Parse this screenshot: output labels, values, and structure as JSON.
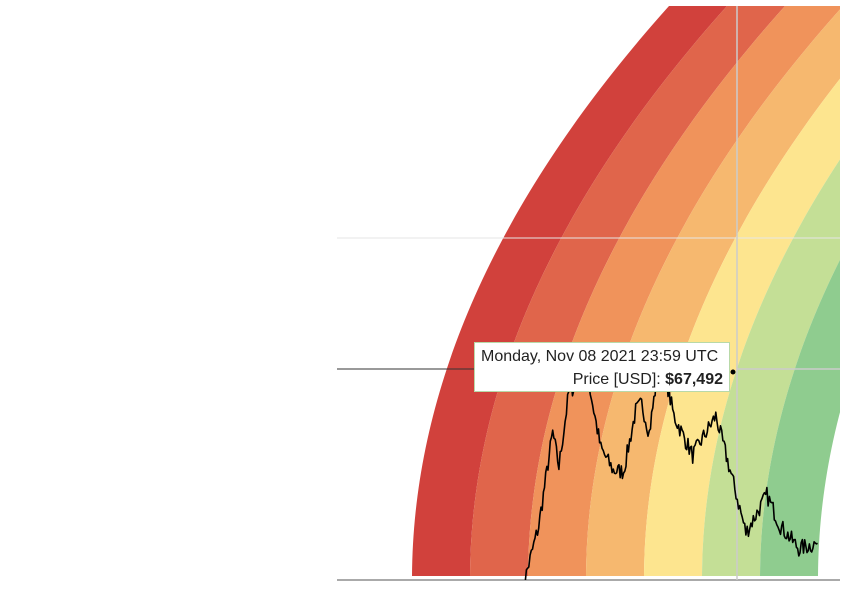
{
  "chart_data": {
    "type": "area",
    "title": "",
    "xlabel": "",
    "ylabel": "",
    "grid": true,
    "legend": "none",
    "x_domain": [
      "2019-06-01",
      "2023-03-01"
    ],
    "y_scale": "log",
    "bands": [
      {
        "color": "#d1413c"
      },
      {
        "color": "#e0654b"
      },
      {
        "color": "#f0935b"
      },
      {
        "color": "#f6b86f"
      },
      {
        "color": "#fde58f"
      },
      {
        "color": "#c4df96"
      },
      {
        "color": "#8fcc8f"
      }
    ],
    "series": [
      {
        "color": "#000000",
        "points": [
          [
            "2020-10-15",
            11000
          ],
          [
            "2020-12-01",
            19000
          ],
          [
            "2021-01-08",
            41000
          ],
          [
            "2021-01-25",
            31000
          ],
          [
            "2021-02-21",
            57000
          ],
          [
            "2021-03-13",
            61000
          ],
          [
            "2021-04-14",
            64000
          ],
          [
            "2021-05-19",
            36000
          ],
          [
            "2021-06-22",
            30000
          ],
          [
            "2021-07-20",
            29800
          ],
          [
            "2021-08-22",
            49000
          ],
          [
            "2021-09-07",
            52000
          ],
          [
            "2021-09-28",
            41000
          ],
          [
            "2021-10-20",
            66000
          ],
          [
            "2021-11-08",
            67492
          ],
          [
            "2021-12-04",
            47000
          ],
          [
            "2022-01-24",
            34000
          ],
          [
            "2022-03-28",
            47000
          ],
          [
            "2022-05-12",
            28000
          ],
          [
            "2022-06-18",
            18000
          ],
          [
            "2022-08-14",
            24500
          ],
          [
            "2022-09-20",
            19000
          ],
          [
            "2022-11-09",
            15800
          ],
          [
            "2022-12-30",
            16500
          ]
        ]
      }
    ],
    "crosshair": {
      "x": "2021-11-08",
      "y": 67492
    }
  },
  "tooltip": {
    "date": "Monday, Nov 08 2021 23:59 UTC",
    "label": "Price [USD]: ",
    "value": "$67,492"
  },
  "colors": {
    "background": "#ffffff",
    "gridline": "#e6e6e6",
    "crosshair": "#cccccc",
    "tooltip_border": "#b8d9a8"
  }
}
